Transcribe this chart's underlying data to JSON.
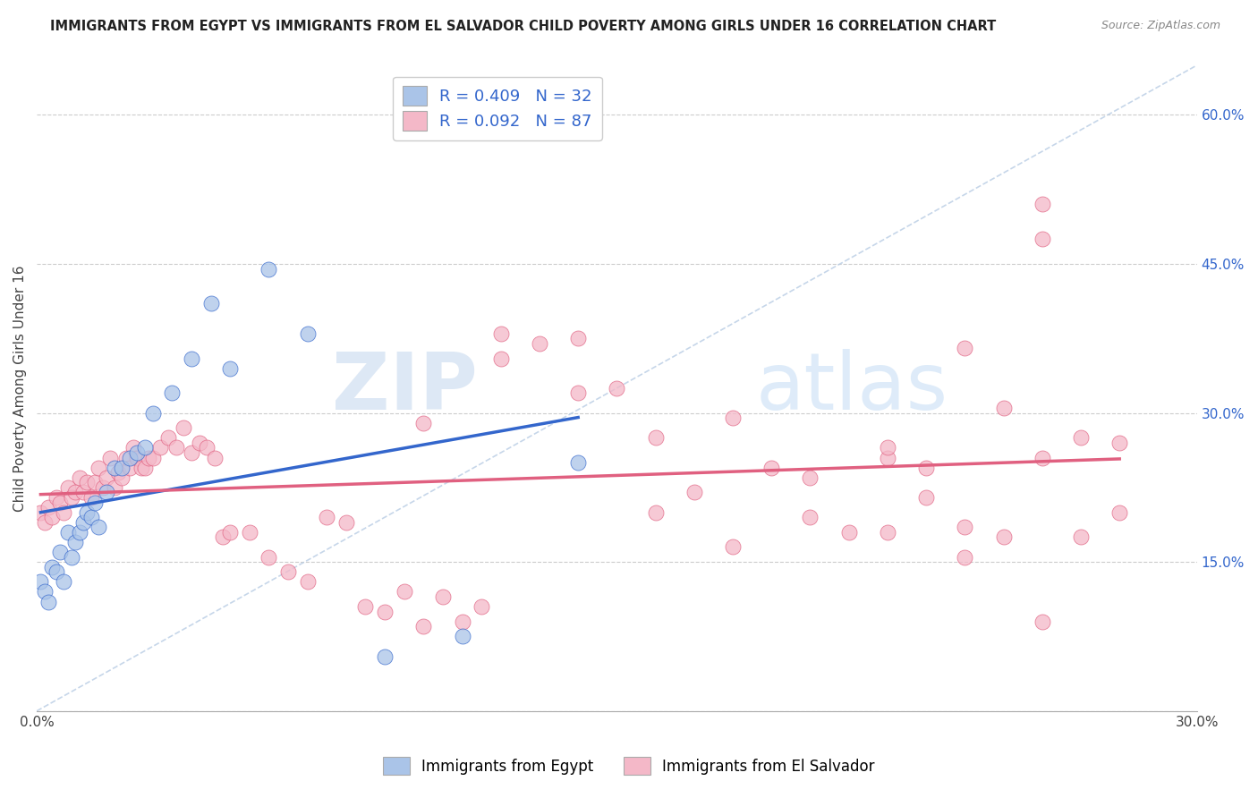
{
  "title": "IMMIGRANTS FROM EGYPT VS IMMIGRANTS FROM EL SALVADOR CHILD POVERTY AMONG GIRLS UNDER 16 CORRELATION CHART",
  "source": "Source: ZipAtlas.com",
  "ylabel": "Child Poverty Among Girls Under 16",
  "xlim": [
    0.0,
    0.3
  ],
  "ylim": [
    0.0,
    0.65
  ],
  "y_ticks_right": [
    0.0,
    0.15,
    0.3,
    0.45,
    0.6
  ],
  "y_tick_labels_right": [
    "",
    "15.0%",
    "30.0%",
    "45.0%",
    "60.0%"
  ],
  "R_egypt": 0.409,
  "N_egypt": 32,
  "R_elsalvador": 0.092,
  "N_elsalvador": 87,
  "color_egypt": "#aac4e8",
  "color_elsalvador": "#f4b8c8",
  "line_color_egypt": "#3366cc",
  "line_color_elsalvador": "#e06080",
  "diagonal_color": "#b8cce4",
  "watermark_zip": "ZIP",
  "watermark_atlas": "atlas",
  "egypt_x": [
    0.001,
    0.002,
    0.003,
    0.004,
    0.005,
    0.006,
    0.007,
    0.008,
    0.009,
    0.01,
    0.011,
    0.012,
    0.013,
    0.014,
    0.015,
    0.016,
    0.018,
    0.02,
    0.022,
    0.024,
    0.026,
    0.028,
    0.03,
    0.035,
    0.04,
    0.045,
    0.05,
    0.06,
    0.07,
    0.09,
    0.11,
    0.14
  ],
  "egypt_y": [
    0.13,
    0.12,
    0.11,
    0.145,
    0.14,
    0.16,
    0.13,
    0.18,
    0.155,
    0.17,
    0.18,
    0.19,
    0.2,
    0.195,
    0.21,
    0.185,
    0.22,
    0.245,
    0.245,
    0.255,
    0.26,
    0.265,
    0.3,
    0.32,
    0.355,
    0.41,
    0.345,
    0.445,
    0.38,
    0.055,
    0.075,
    0.25
  ],
  "elsalvador_x": [
    0.001,
    0.002,
    0.003,
    0.004,
    0.005,
    0.006,
    0.007,
    0.008,
    0.009,
    0.01,
    0.011,
    0.012,
    0.013,
    0.014,
    0.015,
    0.016,
    0.017,
    0.018,
    0.019,
    0.02,
    0.021,
    0.022,
    0.023,
    0.024,
    0.025,
    0.026,
    0.027,
    0.028,
    0.029,
    0.03,
    0.032,
    0.034,
    0.036,
    0.038,
    0.04,
    0.042,
    0.044,
    0.046,
    0.048,
    0.05,
    0.055,
    0.06,
    0.065,
    0.07,
    0.075,
    0.08,
    0.085,
    0.09,
    0.095,
    0.1,
    0.105,
    0.11,
    0.115,
    0.12,
    0.13,
    0.14,
    0.15,
    0.16,
    0.17,
    0.18,
    0.19,
    0.2,
    0.21,
    0.22,
    0.23,
    0.24,
    0.25,
    0.26,
    0.22,
    0.23,
    0.24,
    0.25,
    0.26,
    0.1,
    0.12,
    0.14,
    0.16,
    0.18,
    0.2,
    0.22,
    0.24,
    0.26,
    0.27,
    0.27,
    0.28,
    0.28,
    0.26
  ],
  "elsalvador_y": [
    0.2,
    0.19,
    0.205,
    0.195,
    0.215,
    0.21,
    0.2,
    0.225,
    0.215,
    0.22,
    0.235,
    0.22,
    0.23,
    0.215,
    0.23,
    0.245,
    0.225,
    0.235,
    0.255,
    0.225,
    0.24,
    0.235,
    0.255,
    0.245,
    0.265,
    0.255,
    0.245,
    0.245,
    0.255,
    0.255,
    0.265,
    0.275,
    0.265,
    0.285,
    0.26,
    0.27,
    0.265,
    0.255,
    0.175,
    0.18,
    0.18,
    0.155,
    0.14,
    0.13,
    0.195,
    0.19,
    0.105,
    0.1,
    0.12,
    0.085,
    0.115,
    0.09,
    0.105,
    0.38,
    0.37,
    0.375,
    0.325,
    0.275,
    0.22,
    0.295,
    0.245,
    0.195,
    0.18,
    0.18,
    0.215,
    0.185,
    0.175,
    0.09,
    0.255,
    0.245,
    0.365,
    0.305,
    0.475,
    0.29,
    0.355,
    0.32,
    0.2,
    0.165,
    0.235,
    0.265,
    0.155,
    0.255,
    0.175,
    0.275,
    0.2,
    0.27,
    0.51
  ]
}
